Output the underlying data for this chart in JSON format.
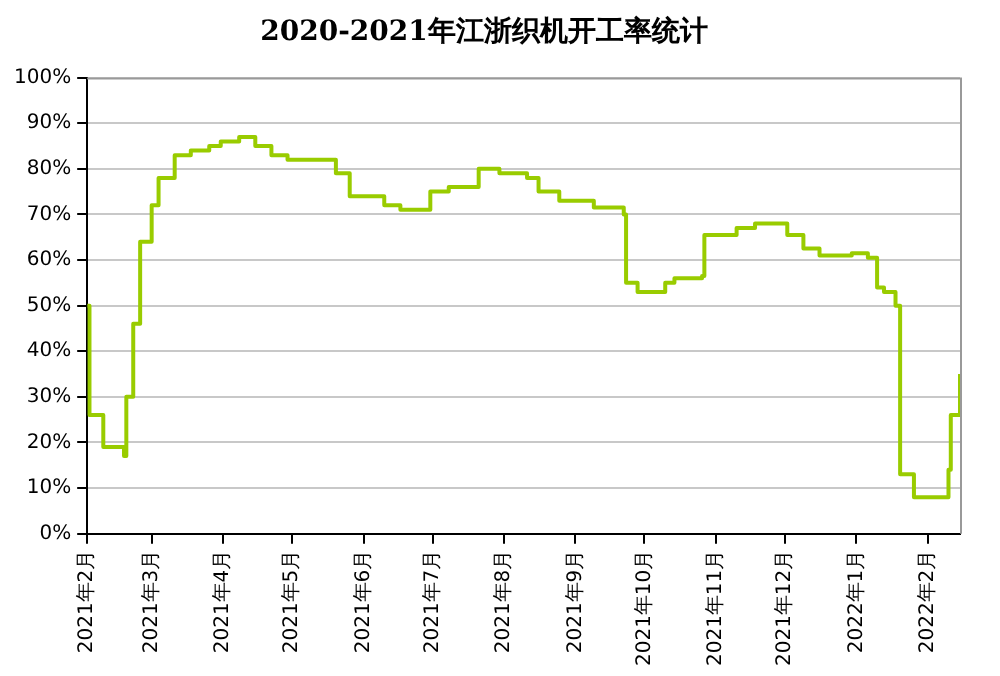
{
  "chart_data": {
    "type": "step",
    "title": "2020-2021年江浙织机开工率统计",
    "x": [
      "2021-02-01",
      "2021-02-02",
      "2021-02-08",
      "2021-02-17",
      "2021-02-18",
      "2021-02-21",
      "2021-02-24",
      "2021-03-01",
      "2021-03-04",
      "2021-03-11",
      "2021-03-18",
      "2021-03-26",
      "2021-03-31",
      "2021-04-08",
      "2021-04-15",
      "2021-04-22",
      "2021-04-29",
      "2021-05-20",
      "2021-05-26",
      "2021-06-10",
      "2021-06-17",
      "2021-06-30",
      "2021-07-08",
      "2021-07-21",
      "2021-07-30",
      "2021-08-11",
      "2021-08-16",
      "2021-08-25",
      "2021-09-09",
      "2021-09-22",
      "2021-09-23",
      "2021-09-28",
      "2021-10-10",
      "2021-10-14",
      "2021-10-26",
      "2021-10-27",
      "2021-11-10",
      "2021-11-18",
      "2021-11-24",
      "2021-12-02",
      "2021-12-09",
      "2021-12-16",
      "2021-12-30",
      "2022-01-06",
      "2022-01-10",
      "2022-01-13",
      "2022-01-18",
      "2022-01-20",
      "2022-01-26",
      "2022-02-07",
      "2022-02-10",
      "2022-02-11",
      "2022-02-15"
    ],
    "series": [
      {
        "color": "#99cc00",
        "values": [
          50,
          26,
          19,
          17,
          30,
          46,
          64,
          72,
          78,
          83,
          84,
          85,
          86,
          87,
          85,
          83,
          82,
          79,
          74,
          72,
          71,
          75,
          76,
          80,
          79,
          78,
          75,
          73,
          71.5,
          70,
          55,
          53,
          55,
          56,
          56.5,
          65.5,
          67,
          68,
          68,
          65.5,
          62.5,
          61,
          61.5,
          60.5,
          54,
          53,
          50,
          13,
          8,
          8,
          14,
          26,
          35
        ]
      }
    ],
    "xlim": [
      "2021-02-01",
      "2022-02-15"
    ],
    "xticks": [
      {
        "value": "2021-02-01",
        "label": "2021年2月"
      },
      {
        "value": "2021-03-01",
        "label": "2021年3月"
      },
      {
        "value": "2021-04-01",
        "label": "2021年4月"
      },
      {
        "value": "2021-05-01",
        "label": "2021年5月"
      },
      {
        "value": "2021-06-01",
        "label": "2021年6月"
      },
      {
        "value": "2021-07-01",
        "label": "2021年7月"
      },
      {
        "value": "2021-08-01",
        "label": "2021年8月"
      },
      {
        "value": "2021-09-01",
        "label": "2021年9月"
      },
      {
        "value": "2021-10-01",
        "label": "2021年10月"
      },
      {
        "value": "2021-11-01",
        "label": "2021年11月"
      },
      {
        "value": "2021-12-01",
        "label": "2021年12月"
      },
      {
        "value": "2022-01-01",
        "label": "2022年1月"
      },
      {
        "value": "2022-02-01",
        "label": "2022年2月"
      }
    ],
    "ylim": [
      0,
      100
    ],
    "yticks": [
      {
        "value": 0,
        "label": "0%"
      },
      {
        "value": 10,
        "label": "10%"
      },
      {
        "value": 20,
        "label": "20%"
      },
      {
        "value": 30,
        "label": "30%"
      },
      {
        "value": 40,
        "label": "40%"
      },
      {
        "value": 50,
        "label": "50%"
      },
      {
        "value": 60,
        "label": "60%"
      },
      {
        "value": 70,
        "label": "70%"
      },
      {
        "value": 80,
        "label": "80%"
      },
      {
        "value": 90,
        "label": "90%"
      },
      {
        "value": 100,
        "label": "100%"
      }
    ],
    "grid": "y",
    "legend": false,
    "marker": "none",
    "line_style": "solid"
  }
}
